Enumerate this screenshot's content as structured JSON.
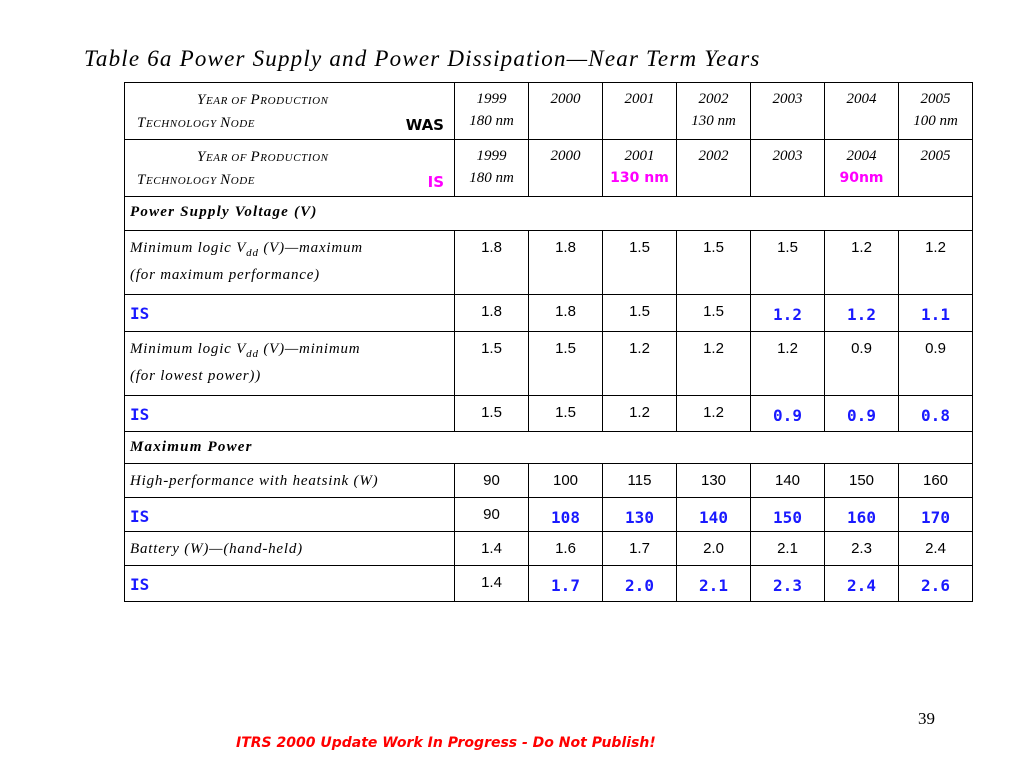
{
  "title": "Table 6a   Power Supply and Power Dissipation—Near Term Years",
  "header_was": {
    "line1_Y": "Y",
    "line1_ear_of": "EAR OF ",
    "line1_P": "P",
    "line1_roduction": "RODUCTION",
    "line2_T": "T",
    "line2_echnology": "ECHNOLOGY ",
    "line2_N": "N",
    "line2_ode": "ODE",
    "tag": "WAS",
    "years": [
      {
        "year": "1999",
        "node": "180 nm"
      },
      {
        "year": "2000",
        "node": ""
      },
      {
        "year": "2001",
        "node": ""
      },
      {
        "year": "2002",
        "node": "130 nm"
      },
      {
        "year": "2003",
        "node": ""
      },
      {
        "year": "2004",
        "node": ""
      },
      {
        "year": "2005",
        "node": "100 nm"
      }
    ]
  },
  "header_is": {
    "tag": "IS",
    "years": [
      {
        "year": "1999",
        "node": "180 nm",
        "node_changed": ""
      },
      {
        "year": "2000",
        "node": "",
        "node_changed": ""
      },
      {
        "year": "2001",
        "node": "",
        "node_changed": "130 nm"
      },
      {
        "year": "2002",
        "node": "",
        "node_changed": ""
      },
      {
        "year": "2003",
        "node": "",
        "node_changed": ""
      },
      {
        "year": "2004",
        "node": "",
        "node_changed": "90nm"
      },
      {
        "year": "2005",
        "node": "",
        "node_changed": ""
      }
    ]
  },
  "sections": {
    "power_supply": "Power Supply Voltage (V)",
    "max_power": "Maximum Power"
  },
  "rows": {
    "vdd_max": {
      "label_a": "Minimum logic V",
      "label_sub": "dd",
      "label_b": " (V)—maximum",
      "label_c": "(for maximum performance)",
      "values": [
        "1.8",
        "1.8",
        "1.5",
        "1.5",
        "1.5",
        "1.2",
        "1.2"
      ]
    },
    "vdd_max_is": {
      "label": "IS",
      "values": [
        "1.8",
        "1.8",
        "1.5",
        "1.5",
        "1.2",
        "1.2",
        "1.1"
      ],
      "changed": [
        false,
        false,
        false,
        false,
        true,
        true,
        true
      ]
    },
    "vdd_min": {
      "label_a": "Minimum logic V",
      "label_sub": "dd",
      "label_b": " (V)—minimum",
      "label_c": "(for lowest power))",
      "values": [
        "1.5",
        "1.5",
        "1.2",
        "1.2",
        "1.2",
        "0.9",
        "0.9"
      ]
    },
    "vdd_min_is": {
      "label": "IS",
      "values": [
        "1.5",
        "1.5",
        "1.2",
        "1.2",
        "0.9",
        "0.9",
        "0.8"
      ],
      "changed": [
        false,
        false,
        false,
        false,
        true,
        true,
        true
      ]
    },
    "hp_heatsink": {
      "label": "High-performance with heatsink (W)",
      "values": [
        "90",
        "100",
        "115",
        "130",
        "140",
        "150",
        "160"
      ]
    },
    "hp_heatsink_is": {
      "label": "IS",
      "values": [
        "90",
        "108",
        "130",
        "140",
        "150",
        "160",
        "170"
      ],
      "changed": [
        false,
        true,
        true,
        true,
        true,
        true,
        true
      ]
    },
    "battery": {
      "label": "Battery (W)—(hand-held)",
      "values": [
        "1.4",
        "1.6",
        "1.7",
        "2.0",
        "2.1",
        "2.3",
        "2.4"
      ]
    },
    "battery_is": {
      "label": "IS",
      "values": [
        "1.4",
        "1.7",
        "2.0",
        "2.1",
        "2.3",
        "2.4",
        "2.6"
      ],
      "changed": [
        false,
        true,
        true,
        true,
        true,
        true,
        true
      ]
    }
  },
  "page_number": "39",
  "footer": "ITRS 2000 Update Work In Progress - Do Not Publish!",
  "colors": {
    "changed_value": "#1a1aff",
    "changed_node": "#ff00ff",
    "footer": "#ff0000"
  }
}
